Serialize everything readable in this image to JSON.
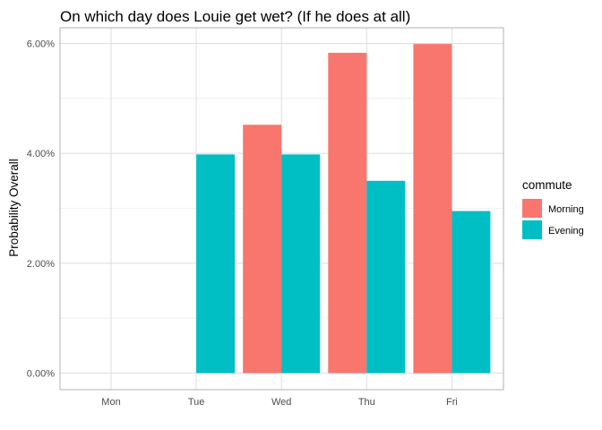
{
  "chart_data": {
    "type": "bar",
    "title": "On which day does Louie get wet? (If he does at all)",
    "xlabel": "",
    "ylabel": "Probability Overall",
    "categories": [
      "Mon",
      "Tue",
      "Wed",
      "Thu",
      "Fri"
    ],
    "series": [
      {
        "name": "Morning",
        "color": "#F8766D",
        "values": [
          0,
          0,
          0.0452,
          0.0583,
          0.0599
        ]
      },
      {
        "name": "Evening",
        "color": "#00BFC4",
        "values": [
          0,
          0.0398,
          0.0398,
          0.035,
          0.0295
        ]
      }
    ],
    "ylim": [
      0,
      0.06
    ],
    "yticks": [
      0,
      0.02,
      0.04,
      0.06
    ],
    "ytick_labels": [
      "0.00%",
      "2.00%",
      "4.00%",
      "6.00%"
    ],
    "grid": true,
    "legend": {
      "title": "commute",
      "position": "right"
    }
  }
}
